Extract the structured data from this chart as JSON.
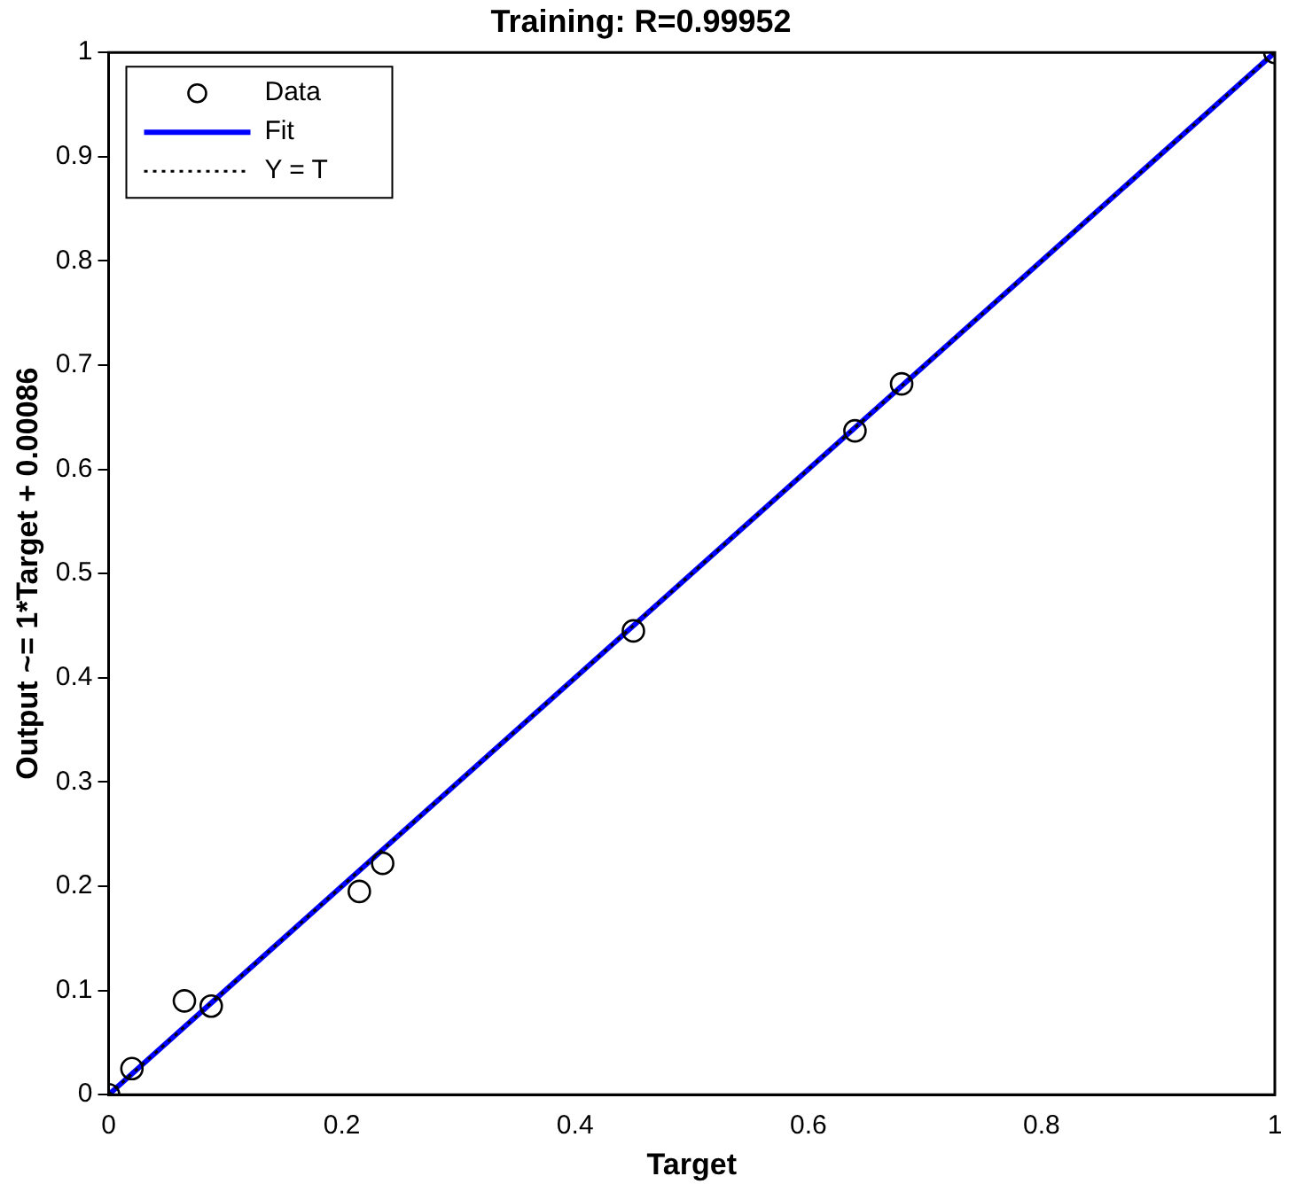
{
  "chart_data": {
    "type": "scatter",
    "title": "Training: R=0.99952",
    "xlabel": "Target",
    "ylabel": "Output ~= 1*Target + 0.00086",
    "xlim": [
      0,
      1
    ],
    "ylim": [
      0,
      1
    ],
    "xticks": [
      0,
      0.2,
      0.4,
      0.6,
      0.8,
      1
    ],
    "yticks": [
      0,
      0.1,
      0.2,
      0.3,
      0.4,
      0.5,
      0.6,
      0.7,
      0.8,
      0.9,
      1
    ],
    "grid": false,
    "legend": "top left",
    "series": [
      {
        "name": "Data",
        "color": "#000000",
        "marker": "circle",
        "x": [
          0,
          0.02,
          0.065,
          0.088,
          0.215,
          0.235,
          0.45,
          0.64,
          0.68,
          1
        ],
        "values": [
          0,
          0.025,
          0.09,
          0.085,
          0.195,
          0.222,
          0.445,
          0.637,
          0.682,
          1
        ]
      },
      {
        "name": "Fit",
        "type": "line",
        "color": "#0000ff",
        "marker": "none",
        "line_style": "solid",
        "x": [
          0,
          1
        ],
        "values": [
          0,
          1
        ]
      },
      {
        "name": "Y = T",
        "type": "line",
        "color": "#000000",
        "marker": "none",
        "line_style": "dotted",
        "x": [
          0,
          1
        ],
        "values": [
          0,
          1
        ]
      }
    ]
  }
}
